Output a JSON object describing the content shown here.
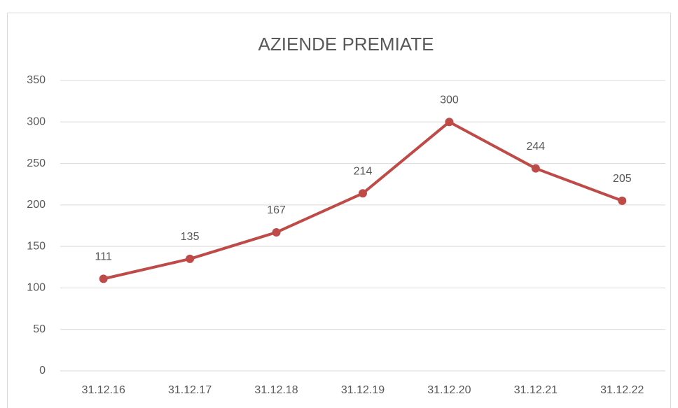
{
  "chart_data": {
    "type": "line",
    "title": "AZIENDE PREMIATE",
    "categories": [
      "31.12.16",
      "31.12.17",
      "31.12.18",
      "31.12.19",
      "31.12.20",
      "31.12.21",
      "31.12.22"
    ],
    "series": [
      {
        "name": "Aziende premiate",
        "color": "#be4b48",
        "values": [
          111,
          135,
          167,
          214,
          300,
          244,
          205
        ]
      }
    ],
    "ylim": [
      0,
      350
    ],
    "yticks": [
      0,
      50,
      100,
      150,
      200,
      250,
      300,
      350
    ],
    "grid": true,
    "data_labels": true
  }
}
